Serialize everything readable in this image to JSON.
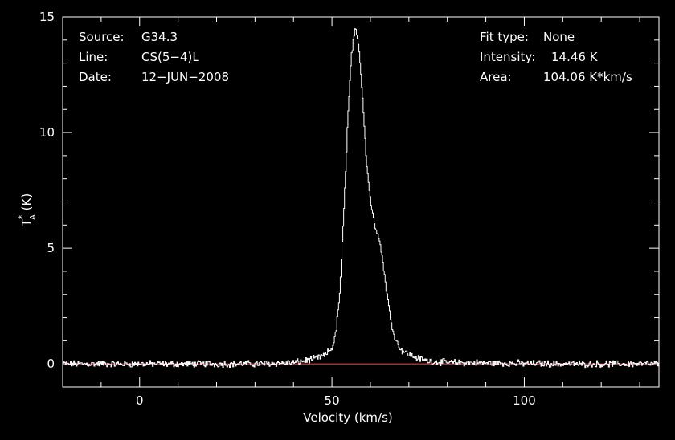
{
  "chart_data": {
    "type": "line",
    "xlabel": "Velocity (km/s)",
    "ylabel_main": "T",
    "ylabel_sup": "*",
    "ylabel_sub": "A",
    "ylabel_unit": " (K)",
    "xlim": [
      -20,
      135
    ],
    "ylim": [
      -1,
      15
    ],
    "xticks": [
      0,
      50,
      100
    ],
    "yticks": [
      0,
      5,
      10,
      15
    ],
    "baseline": 0,
    "baseline_color": "#ff3030",
    "line_color": "#ffffff",
    "info_left": [
      {
        "key": "Source:",
        "value": "G34.3"
      },
      {
        "key": "Line:",
        "value": "CS(5−4)L"
      },
      {
        "key": "Date:",
        "value": "12−JUN−2008"
      }
    ],
    "info_right": [
      {
        "key": "Fit type:",
        "value": "None"
      },
      {
        "key": "Intensity:",
        "value": "14.46 K"
      },
      {
        "key": "Area:",
        "value": "104.06 K*km/s"
      }
    ],
    "series": [
      {
        "x": [
          -20,
          -10,
          0,
          10,
          20,
          30,
          40,
          45,
          48,
          50,
          51,
          52,
          53,
          54,
          55,
          56,
          57,
          58,
          59,
          60,
          61,
          62,
          63,
          64,
          65,
          66,
          67,
          68,
          70,
          72,
          75,
          80,
          90,
          100,
          110,
          120,
          130,
          135
        ],
        "values": [
          0,
          0,
          0,
          0,
          0,
          0,
          0.05,
          0.2,
          0.35,
          0.7,
          1.4,
          3.2,
          6.5,
          10.5,
          13.4,
          14.46,
          13.6,
          11.2,
          8.5,
          7.0,
          6.0,
          5.6,
          4.6,
          3.3,
          2.1,
          1.3,
          0.85,
          0.6,
          0.4,
          0.25,
          0.12,
          0.06,
          0.04,
          0.02,
          0,
          0,
          0,
          0
        ]
      }
    ]
  }
}
